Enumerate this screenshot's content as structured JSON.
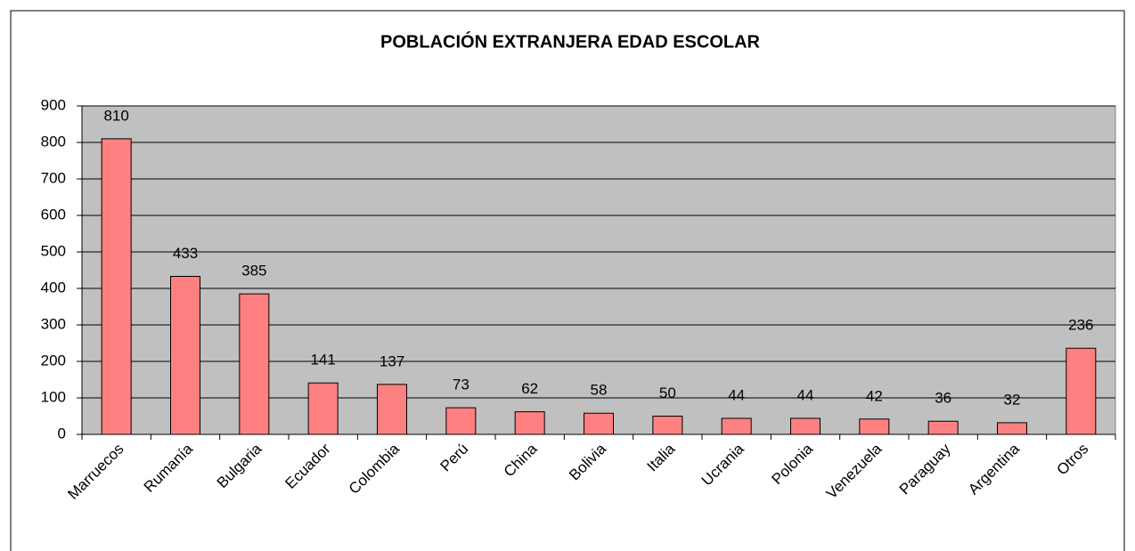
{
  "chart_data": {
    "type": "bar",
    "title": "POBLACIÓN EXTRANJERA EDAD ESCOLAR",
    "categories": [
      "Marruecos",
      "Rumanía",
      "Bulgaria",
      "Ecuador",
      "Colombia",
      "Perú",
      "China",
      "Bolivia",
      "Italia",
      "Ucrania",
      "Polonia",
      "Venezuela",
      "Paraguay",
      "Argentina",
      "Otros"
    ],
    "values": [
      810,
      433,
      385,
      141,
      137,
      73,
      62,
      58,
      50,
      44,
      44,
      42,
      36,
      32,
      236
    ],
    "color": "#ff8080",
    "ylim": [
      0,
      900
    ],
    "yticks": [
      0,
      100,
      200,
      300,
      400,
      500,
      600,
      700,
      800,
      900
    ],
    "grid": true
  }
}
